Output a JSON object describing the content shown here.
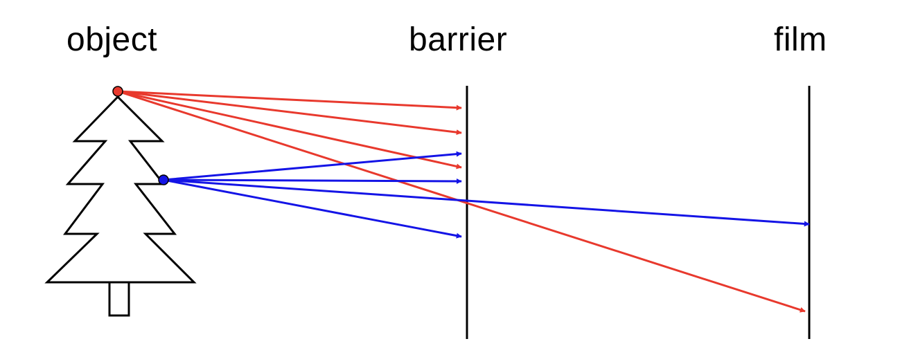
{
  "labels": {
    "object": "object",
    "barrier": "barrier",
    "film": "film"
  },
  "colors": {
    "red_ray": "#e8392d",
    "blue_ray": "#1414e6",
    "line": "#000000",
    "background": "#ffffff"
  },
  "elements": {
    "object": "pine-tree",
    "barrier": "vertical-barrier-line",
    "film": "vertical-film-line"
  },
  "rays": {
    "red": {
      "source": "top-of-tree",
      "count": 4,
      "reaches": [
        "barrier",
        "barrier",
        "barrier",
        "film"
      ]
    },
    "blue": {
      "source": "right-side-of-tree",
      "count": 4,
      "reaches": [
        "barrier",
        "barrier",
        "film",
        "barrier"
      ]
    }
  }
}
